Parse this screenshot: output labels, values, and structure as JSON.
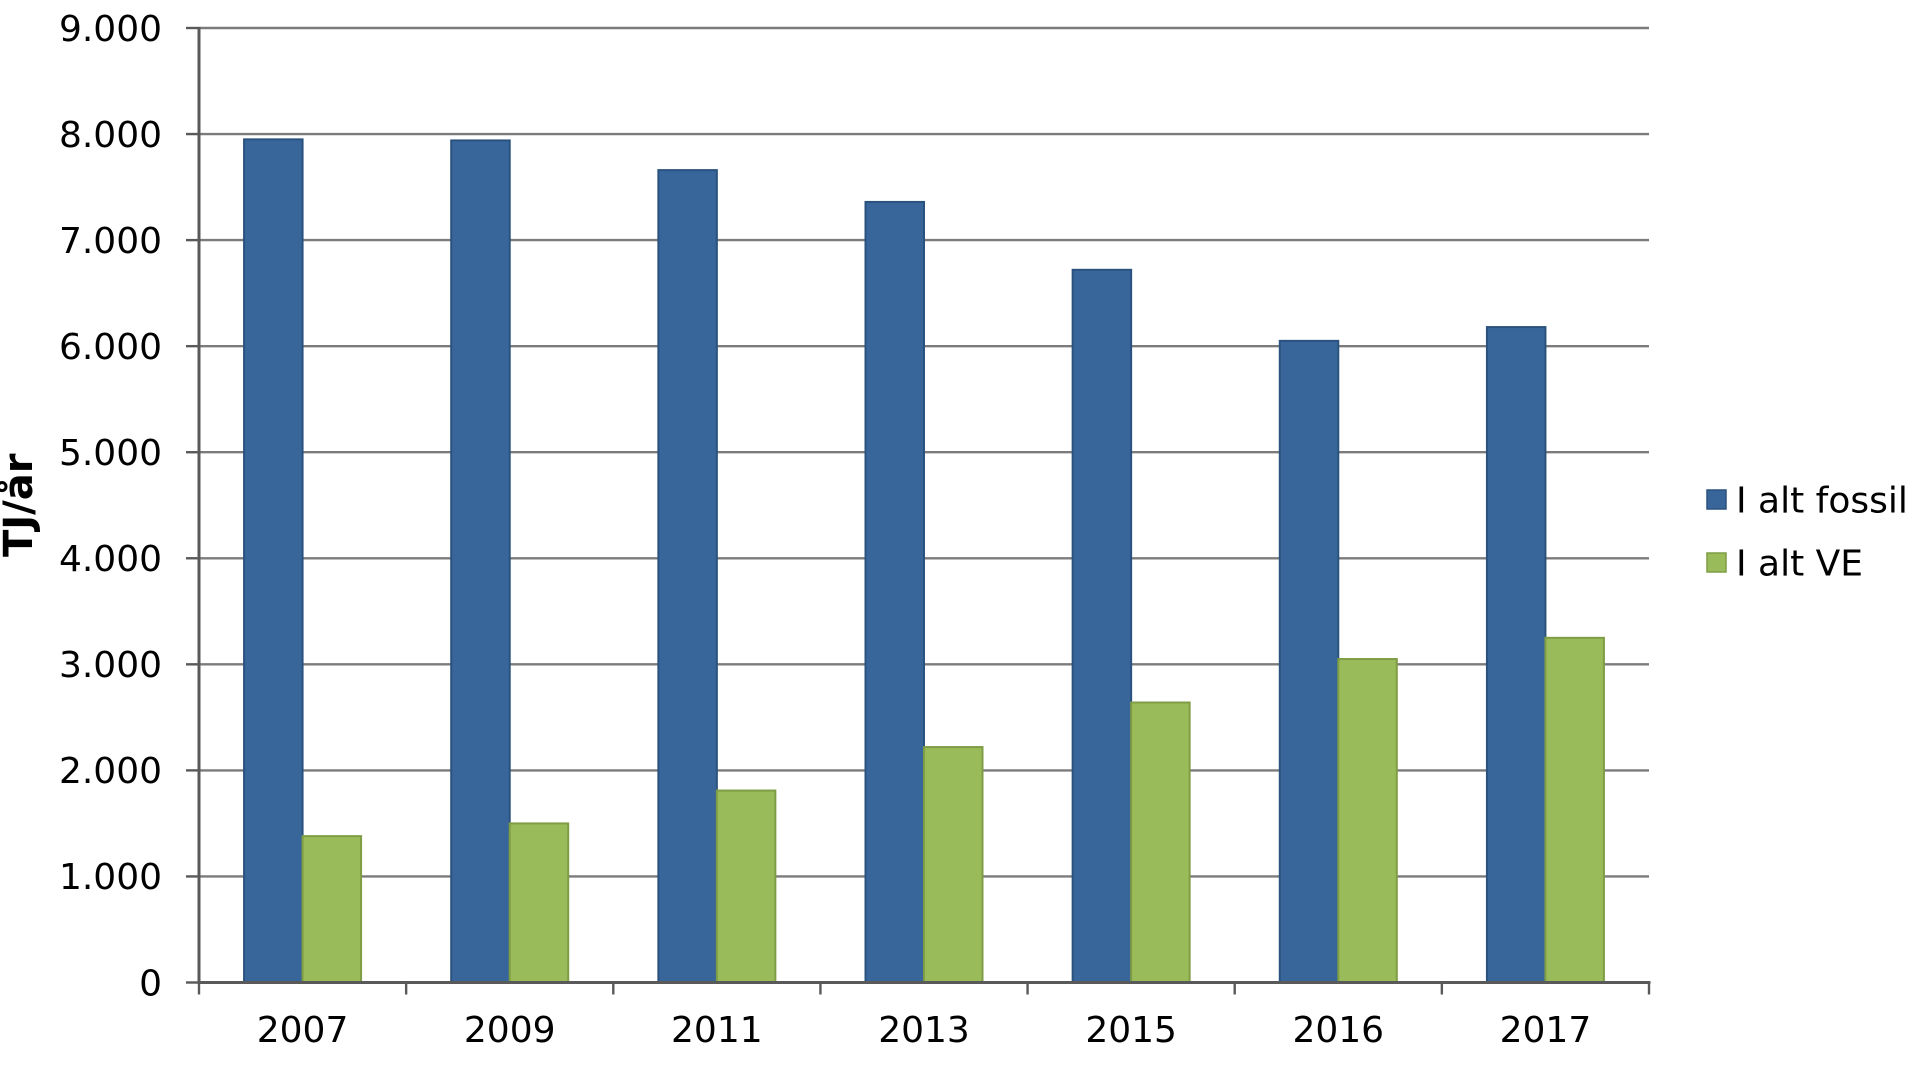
{
  "chart_data": {
    "type": "bar",
    "title": "",
    "xlabel": "",
    "ylabel": "TJ/år",
    "categories": [
      "2007",
      "2009",
      "2011",
      "2013",
      "2015",
      "2016",
      "2017"
    ],
    "series": [
      {
        "name": "I alt fossil",
        "color": "#38669A",
        "border_color": "#2A527F",
        "values": [
          7950,
          7940,
          7660,
          7360,
          6720,
          6050,
          6180
        ]
      },
      {
        "name": "I alt VE",
        "color": "#9ABB59",
        "border_color": "#7E9D45",
        "values": [
          1380,
          1500,
          1810,
          2220,
          2640,
          3050,
          3250
        ]
      }
    ],
    "ylim": [
      0,
      9000
    ],
    "y_tick_step": 1000,
    "y_tick_labels": [
      "0",
      "1.000",
      "2.000",
      "3.000",
      "4.000",
      "5.000",
      "6.000",
      "7.000",
      "8.000",
      "9.000"
    ],
    "grid": true,
    "gridline_color": "#7B7B7B",
    "axis_color": "#595959",
    "text_color": "#000000",
    "background_color": "#FFFFFF",
    "legend_position": "right"
  }
}
